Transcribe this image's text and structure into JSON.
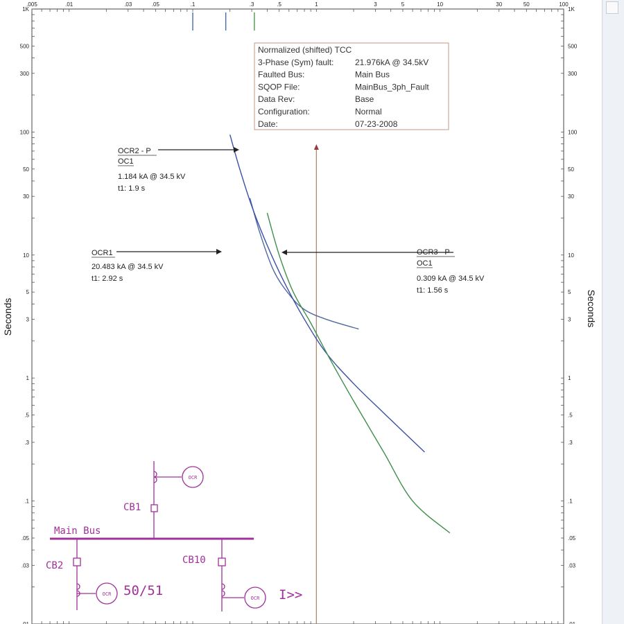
{
  "chart_data": {
    "type": "line",
    "title": "",
    "ylabel_left": "Seconds",
    "ylabel_right": "Seconds",
    "x_scale": "log",
    "y_scale": "log",
    "xlim": [
      0.005,
      100
    ],
    "ylim": [
      0.01,
      1000
    ],
    "x_tick_labels": [
      ".005",
      ".01",
      ".03",
      ".05",
      ".1",
      ".3",
      ".5",
      "1",
      "3",
      "5",
      "10",
      "30",
      "50",
      "100"
    ],
    "x_tick_values": [
      0.005,
      0.01,
      0.03,
      0.05,
      0.1,
      0.3,
      0.5,
      1,
      3,
      5,
      10,
      30,
      50,
      100
    ],
    "y_tick_labels": [
      "1K",
      "500",
      "300",
      "100",
      "50",
      "30",
      "10",
      "5",
      "3",
      "1",
      ".5",
      ".3",
      ".1",
      ".05",
      ".03",
      ".01"
    ],
    "y_tick_values": [
      1000,
      500,
      300,
      100,
      50,
      30,
      10,
      5,
      3,
      1,
      0.5,
      0.3,
      0.1,
      0.05,
      0.03,
      0.01
    ],
    "fault_current_marker_x": 1,
    "top_pickup_markers": [
      {
        "x": 0.1,
        "color": "#4a66b5"
      },
      {
        "x": 0.185,
        "color": "#4a66b5"
      },
      {
        "x": 0.315,
        "color": "#4a9a4a"
      }
    ],
    "series": [
      {
        "id": "ocr1",
        "color": "#4f6aa0",
        "points": [
          [
            0.29,
            29
          ],
          [
            0.35,
            15
          ],
          [
            0.45,
            7.5
          ],
          [
            0.6,
            4.8
          ],
          [
            0.8,
            3.6
          ],
          [
            1.2,
            3.0
          ],
          [
            2.2,
            2.5
          ]
        ]
      },
      {
        "id": "ocr2",
        "color": "#3a4fa8",
        "points": [
          [
            0.2,
            95
          ],
          [
            0.24,
            50
          ],
          [
            0.3,
            25
          ],
          [
            0.4,
            12
          ],
          [
            0.55,
            6
          ],
          [
            0.8,
            3
          ],
          [
            1.2,
            1.6
          ],
          [
            2,
            0.9
          ],
          [
            3.5,
            0.52
          ],
          [
            7.5,
            0.25
          ]
        ]
      },
      {
        "id": "ocr3",
        "color": "#3f8f4a",
        "points": [
          [
            0.4,
            22
          ],
          [
            0.5,
            10
          ],
          [
            0.65,
            5
          ],
          [
            0.9,
            2.8
          ],
          [
            1.3,
            1.4
          ],
          [
            2,
            0.65
          ],
          [
            3.5,
            0.25
          ],
          [
            6,
            0.1
          ],
          [
            12,
            0.055
          ]
        ]
      }
    ],
    "annotations": [
      {
        "lines": [
          "OCR2 - P",
          "OC1",
          "1.184 kA @ 34.5 kV",
          "t1: 1.9 s"
        ]
      },
      {
        "lines": [
          "OCR1",
          "20.483 kA @ 34.5 kV",
          "t1: 2.92 s"
        ]
      },
      {
        "lines": [
          "OCR3 - P",
          "OC1",
          "0.309 kA @ 34.5 kV",
          "t1: 1.56 s"
        ]
      }
    ],
    "info_box": [
      [
        "Normalized (shifted) TCC",
        ""
      ],
      [
        "3-Phase (Sym)  fault:",
        "21.976kA @ 34.5kV"
      ],
      [
        "Faulted Bus:",
        "Main Bus"
      ],
      [
        "SQOP File:",
        "MainBus_3ph_Fault"
      ],
      [
        "Data Rev:",
        "Base"
      ],
      [
        "Configuration:",
        "Normal"
      ],
      [
        "Date:",
        "07-23-2008"
      ]
    ],
    "single_line_diagram": {
      "bus_label": "Main Bus",
      "breakers": [
        "CB1",
        "CB2",
        "CB10"
      ],
      "relay_label": "OCR",
      "function_labels": [
        "50/51",
        "I>>"
      ],
      "color": "#a0309a"
    }
  }
}
